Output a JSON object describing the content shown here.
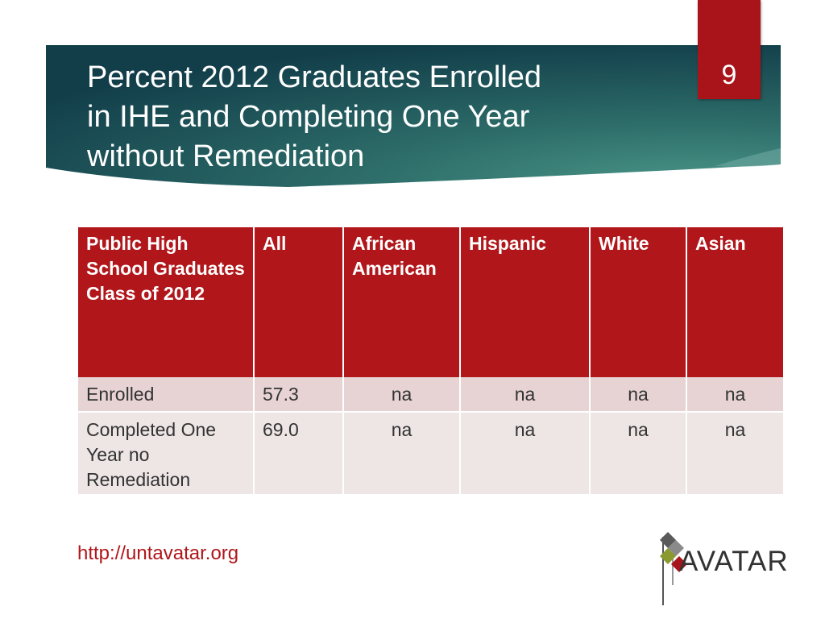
{
  "slide": {
    "title": "Percent 2012 Graduates Enrolled\nin IHE and Completing One Year\nwithout Remediation",
    "page_number": "9",
    "url": "http://untavatar.org",
    "logo_text": "AVATAR"
  },
  "colors": {
    "title_band_dark": "#123e4a",
    "title_band_light": "#3f8a7e",
    "accent_red": "#b0161a"
  },
  "table": {
    "headers": [
      "Public High School Graduates Class of 2012",
      "All",
      "African American",
      "Hispanic",
      "White",
      "Asian"
    ],
    "rows": [
      [
        "Enrolled",
        "57.3",
        "na",
        "na",
        "na",
        "na"
      ],
      [
        "Completed One Year no Remediation",
        "69.0",
        "na",
        "na",
        "na",
        "na"
      ]
    ]
  }
}
